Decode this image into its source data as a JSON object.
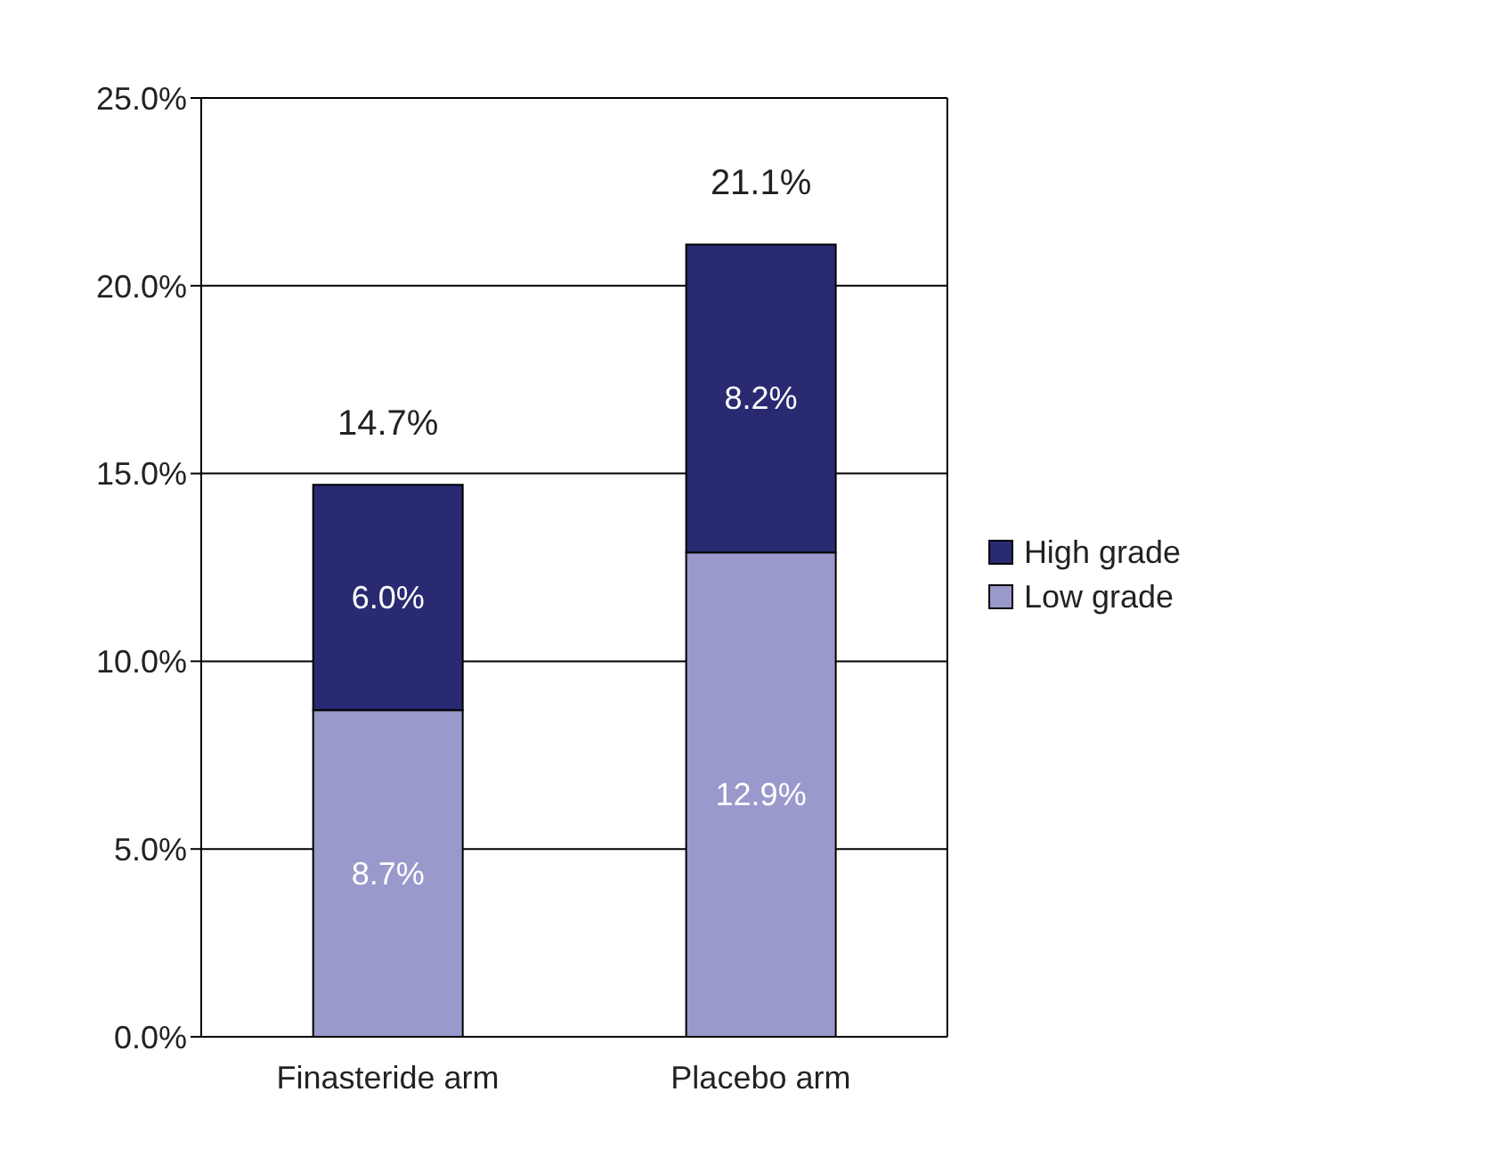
{
  "chart_data": {
    "type": "bar",
    "stacked": true,
    "categories": [
      "Finasteride arm",
      "Placebo arm"
    ],
    "series": [
      {
        "name": "Low grade",
        "color": "#9999cc",
        "values": [
          8.7,
          12.9
        ],
        "value_labels": [
          "8.7%",
          "12.9%"
        ]
      },
      {
        "name": "High grade",
        "color": "#2a2a72",
        "values": [
          6.0,
          8.2
        ],
        "value_labels": [
          "6.0%",
          "8.2%"
        ]
      }
    ],
    "totals": [
      "14.7%",
      "21.1%"
    ],
    "ylim": [
      0,
      25
    ],
    "yticks": [
      {
        "value": 0,
        "label": "0.0%"
      },
      {
        "value": 5,
        "label": "5.0%"
      },
      {
        "value": 10,
        "label": "10.0%"
      },
      {
        "value": 15,
        "label": "15.0%"
      },
      {
        "value": 20,
        "label": "20.0%"
      },
      {
        "value": 25,
        "label": "25.0%"
      }
    ],
    "grid": "y",
    "legend": "right"
  }
}
